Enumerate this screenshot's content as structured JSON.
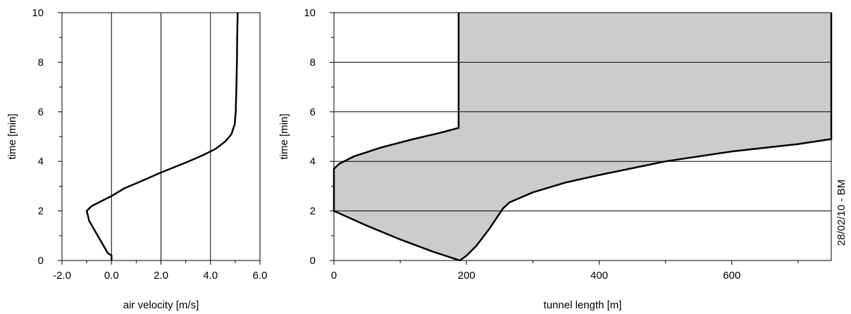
{
  "chart_data": [
    {
      "type": "line",
      "xlabel": "air velocity [m/s]",
      "ylabel": "time [min]",
      "xlim": [
        -2.0,
        6.0
      ],
      "ylim": [
        0,
        10
      ],
      "x_ticks": [
        "-2.0",
        "0.0",
        "2.0",
        "4.0",
        "6.0"
      ],
      "y_ticks": [
        "0",
        "2",
        "4",
        "6",
        "8",
        "10"
      ],
      "grid": "vertical",
      "series": [
        {
          "points": [
            [
              0.0,
              0.0
            ],
            [
              0.0,
              0.2
            ],
            [
              -0.15,
              0.3
            ],
            [
              -0.5,
              0.9
            ],
            [
              -0.9,
              1.6
            ],
            [
              -1.0,
              2.0
            ],
            [
              -0.8,
              2.2
            ],
            [
              -0.3,
              2.45
            ],
            [
              0.0,
              2.6
            ],
            [
              0.5,
              2.9
            ],
            [
              1.2,
              3.2
            ],
            [
              2.0,
              3.55
            ],
            [
              3.0,
              3.95
            ],
            [
              3.7,
              4.25
            ],
            [
              4.2,
              4.5
            ],
            [
              4.6,
              4.8
            ],
            [
              4.85,
              5.1
            ],
            [
              4.98,
              5.5
            ],
            [
              5.02,
              6.0
            ],
            [
              5.05,
              7.0
            ],
            [
              5.07,
              8.0
            ],
            [
              5.08,
              9.0
            ],
            [
              5.1,
              10.0
            ]
          ]
        }
      ]
    },
    {
      "type": "area",
      "xlabel": "tunnel length [m]",
      "ylabel": "time [min]",
      "xlim": [
        0,
        750
      ],
      "ylim": [
        0,
        10
      ],
      "x_ticks": [
        "0",
        "200",
        "400",
        "600"
      ],
      "y_ticks": [
        "0",
        "2",
        "4",
        "6",
        "8",
        "10"
      ],
      "grid": "horizontal",
      "fill_color": "#cccccc",
      "left_boundary": [
        [
          190,
          0.0
        ],
        [
          150,
          0.35
        ],
        [
          100,
          0.85
        ],
        [
          50,
          1.4
        ],
        [
          0,
          2.0
        ],
        [
          0,
          3.7
        ],
        [
          8,
          3.9
        ],
        [
          30,
          4.2
        ],
        [
          70,
          4.55
        ],
        [
          120,
          4.9
        ],
        [
          160,
          5.15
        ],
        [
          188,
          5.35
        ],
        [
          188,
          10.0
        ]
      ],
      "right_boundary": [
        [
          190,
          0.0
        ],
        [
          200,
          0.2
        ],
        [
          215,
          0.6
        ],
        [
          235,
          1.3
        ],
        [
          250,
          1.9
        ],
        [
          255,
          2.1
        ],
        [
          265,
          2.35
        ],
        [
          300,
          2.75
        ],
        [
          350,
          3.15
        ],
        [
          400,
          3.45
        ],
        [
          500,
          4.0
        ],
        [
          600,
          4.4
        ],
        [
          700,
          4.7
        ],
        [
          750,
          4.9
        ],
        [
          750,
          10.0
        ]
      ]
    }
  ],
  "side_note": "28/02/10  - BM"
}
